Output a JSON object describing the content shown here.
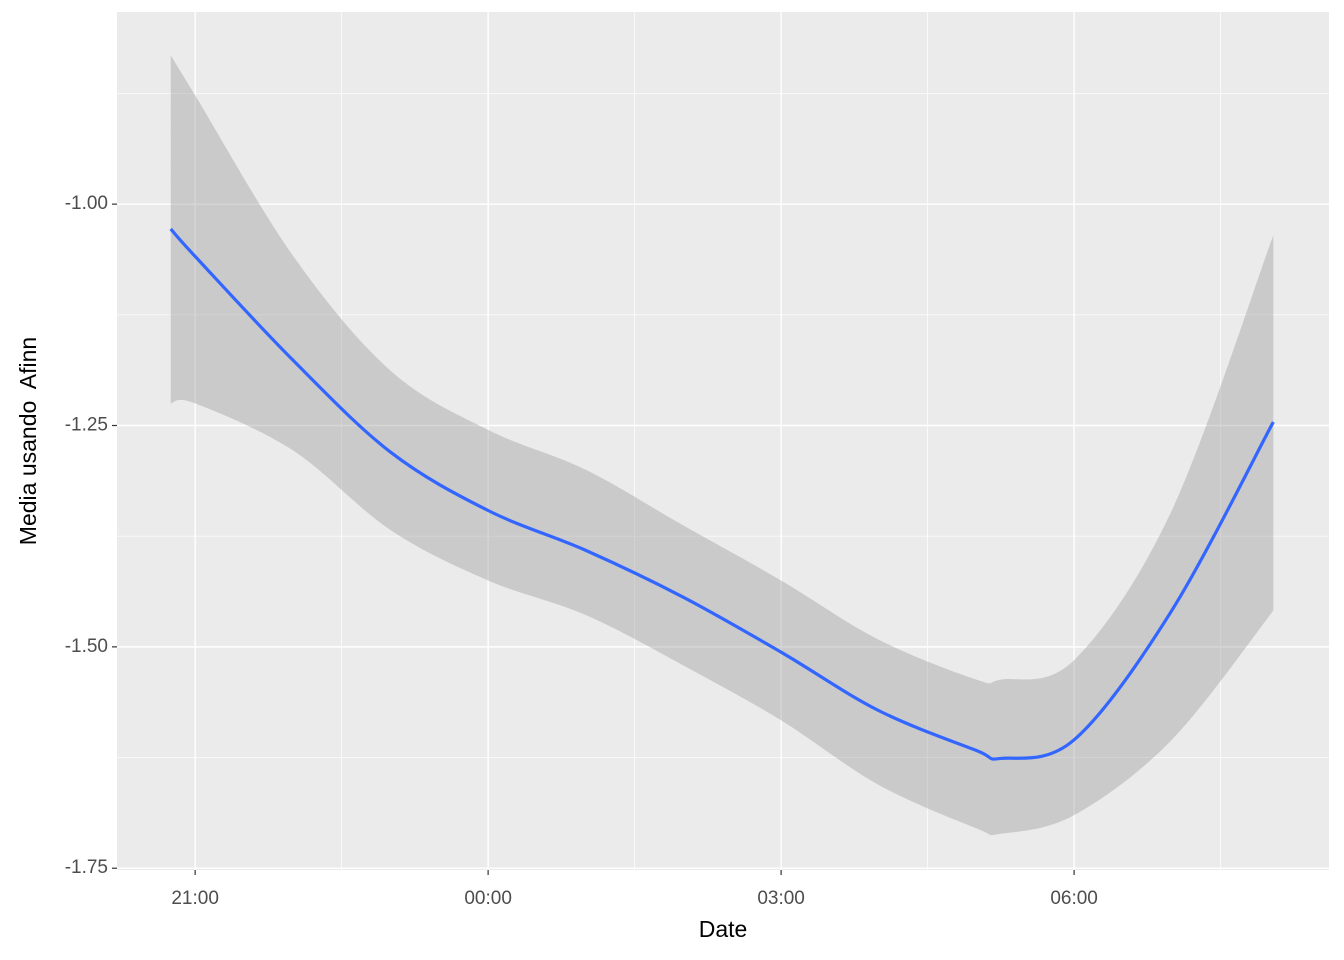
{
  "chart_data": {
    "type": "smooth",
    "x_label": "Date",
    "y_label": "Media usando  Afinn",
    "x": [
      20.75,
      21,
      22,
      23,
      24,
      25,
      26,
      27,
      28,
      29,
      29.25,
      30,
      31,
      32.04
    ],
    "values": [
      -1.028,
      -1.059,
      -1.176,
      -1.28,
      -1.346,
      -1.391,
      -1.444,
      -1.506,
      -1.572,
      -1.617,
      -1.626,
      -1.605,
      -1.459,
      -1.246
    ],
    "upper": [
      -0.832,
      -0.877,
      -1.058,
      -1.188,
      -1.255,
      -1.3,
      -1.363,
      -1.425,
      -1.492,
      -1.537,
      -1.537,
      -1.515,
      -1.346,
      -1.035
    ],
    "lower": [
      -1.225,
      -1.225,
      -1.278,
      -1.368,
      -1.425,
      -1.464,
      -1.521,
      -1.583,
      -1.656,
      -1.705,
      -1.711,
      -1.69,
      -1.605,
      -1.459
    ],
    "color": "#3366ff",
    "band_color": "#999999",
    "xlim": [
      20.2,
      32.61
    ],
    "ylim": [
      -1.752,
      -0.783
    ],
    "xticks": [
      {
        "value": 21,
        "label": "21:00"
      },
      {
        "value": 24,
        "label": "00:00"
      },
      {
        "value": 27,
        "label": "03:00"
      },
      {
        "value": 30,
        "label": "06:00"
      }
    ],
    "yticks": [
      {
        "value": -1.75,
        "label": "-1.75"
      },
      {
        "value": -1.5,
        "label": "-1.50"
      },
      -1.25,
      {
        "value": -1.0,
        "label": "-1.00"
      }
    ],
    "grid": true
  }
}
